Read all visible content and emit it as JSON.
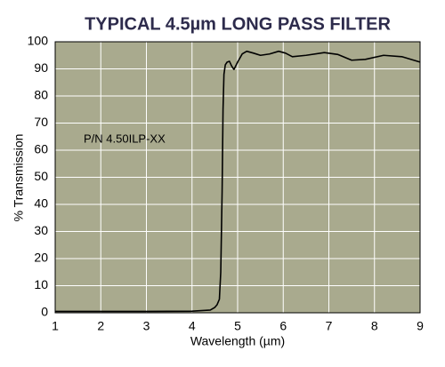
{
  "chart_data": {
    "type": "line",
    "title": "TYPICAL 4.5µm LONG PASS FILTER",
    "xlabel": "Wavelength (µm)",
    "ylabel": "% Transmission",
    "annotation": "P/N 4.50ILP-XX",
    "x": [
      1,
      2,
      3,
      4,
      4.4,
      4.5,
      4.55,
      4.6,
      4.63,
      4.66,
      4.68,
      4.7,
      4.73,
      4.77,
      4.82,
      4.87,
      4.92,
      5.0,
      5.1,
      5.2,
      5.35,
      5.5,
      5.7,
      5.9,
      6.05,
      6.2,
      6.5,
      6.9,
      7.2,
      7.5,
      7.8,
      8.2,
      8.6,
      9
    ],
    "series": [
      {
        "color": "#000000",
        "values": [
          0.5,
          0.5,
          0.5,
          0.6,
          1,
          2,
          3,
          5,
          15,
          45,
          75,
          88,
          91.5,
          92.5,
          92.8,
          91,
          89.8,
          92.5,
          95.5,
          96.5,
          95.8,
          95,
          95.5,
          96.5,
          95.8,
          94.5,
          95,
          96,
          95.3,
          93.2,
          93.5,
          95,
          94.5,
          92.5
        ]
      }
    ],
    "xlim": [
      1,
      9
    ],
    "xticks": [
      1,
      2,
      3,
      4,
      5,
      6,
      7,
      8,
      9
    ],
    "ylim": [
      0,
      100
    ],
    "yticks": [
      0,
      10,
      20,
      30,
      40,
      50,
      60,
      70,
      80,
      90,
      100
    ],
    "grid": true,
    "plot_background": "#a9aa8e"
  }
}
